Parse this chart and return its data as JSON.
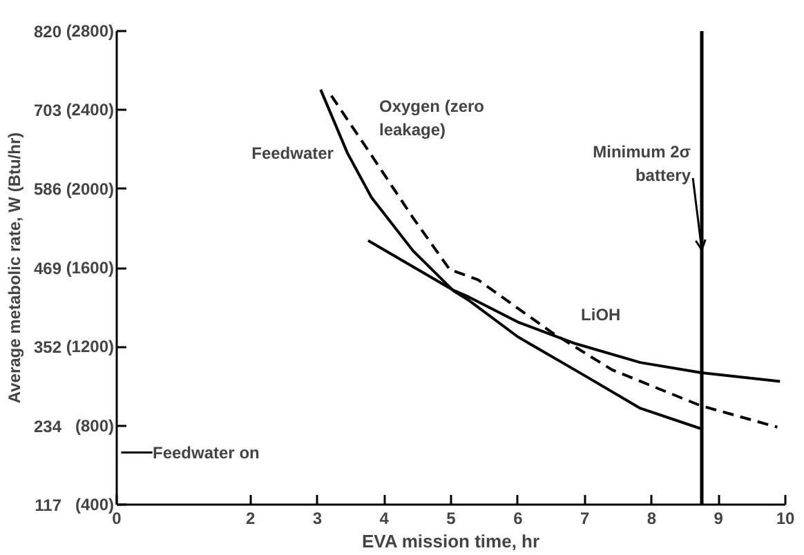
{
  "chart_data": {
    "type": "line",
    "xlabel": "EVA mission time, hr",
    "ylabel": "Average metabolic rate, W (Btu/hr)",
    "xlim": [
      0,
      10
    ],
    "xticks": [
      0,
      2,
      3,
      4,
      5,
      6,
      7,
      8,
      9,
      10
    ],
    "ylim": [
      117,
      820
    ],
    "yticks": [
      117,
      234,
      352,
      469,
      586,
      703,
      820
    ],
    "y2lim": [
      400,
      2800
    ],
    "y2ticks": [
      {
        "value": 400,
        "label": "(400)"
      },
      {
        "value": 800,
        "label": "(800)"
      },
      {
        "value": 1200,
        "label": "(1200)"
      },
      {
        "value": 1600,
        "label": "(1600)"
      },
      {
        "value": 2000,
        "label": "(2000)"
      },
      {
        "value": 2400,
        "label": "(2400)"
      },
      {
        "value": 2800,
        "label": "(2800)"
      }
    ],
    "grid": false,
    "series": [
      {
        "name": "Feedwater",
        "color": "#000000",
        "line_style": "solid",
        "x": [
          3.05,
          3.45,
          3.81,
          4.43,
          5.04,
          5.27,
          6.0,
          6.99,
          7.83,
          8.73
        ],
        "values": [
          733,
          639,
          573,
          494,
          434,
          420,
          366,
          309,
          260,
          230
        ]
      },
      {
        "name": "Oxygen (zero\nleakage)",
        "color": "#000000",
        "line_style": "dashed",
        "x": [
          3.21,
          3.76,
          4.43,
          4.98,
          5.4,
          6.5,
          7.41,
          8.73,
          9.88
        ],
        "values": [
          724,
          643,
          543,
          466,
          451,
          373,
          317,
          264,
          232
        ]
      },
      {
        "name": "LiOH",
        "color": "#000000",
        "line_style": "solid",
        "x": [
          3.76,
          5.04,
          5.27,
          6.0,
          6.86,
          7.83,
          8.73,
          9.92
        ],
        "values": [
          509,
          435,
          425,
          388,
          356,
          328,
          313,
          300
        ]
      }
    ],
    "ref_lines": [
      {
        "axis": "x",
        "value": 8.75,
        "label": "Minimum 2σ\nbattery"
      }
    ],
    "annotations": [
      "Feedwater on"
    ]
  }
}
